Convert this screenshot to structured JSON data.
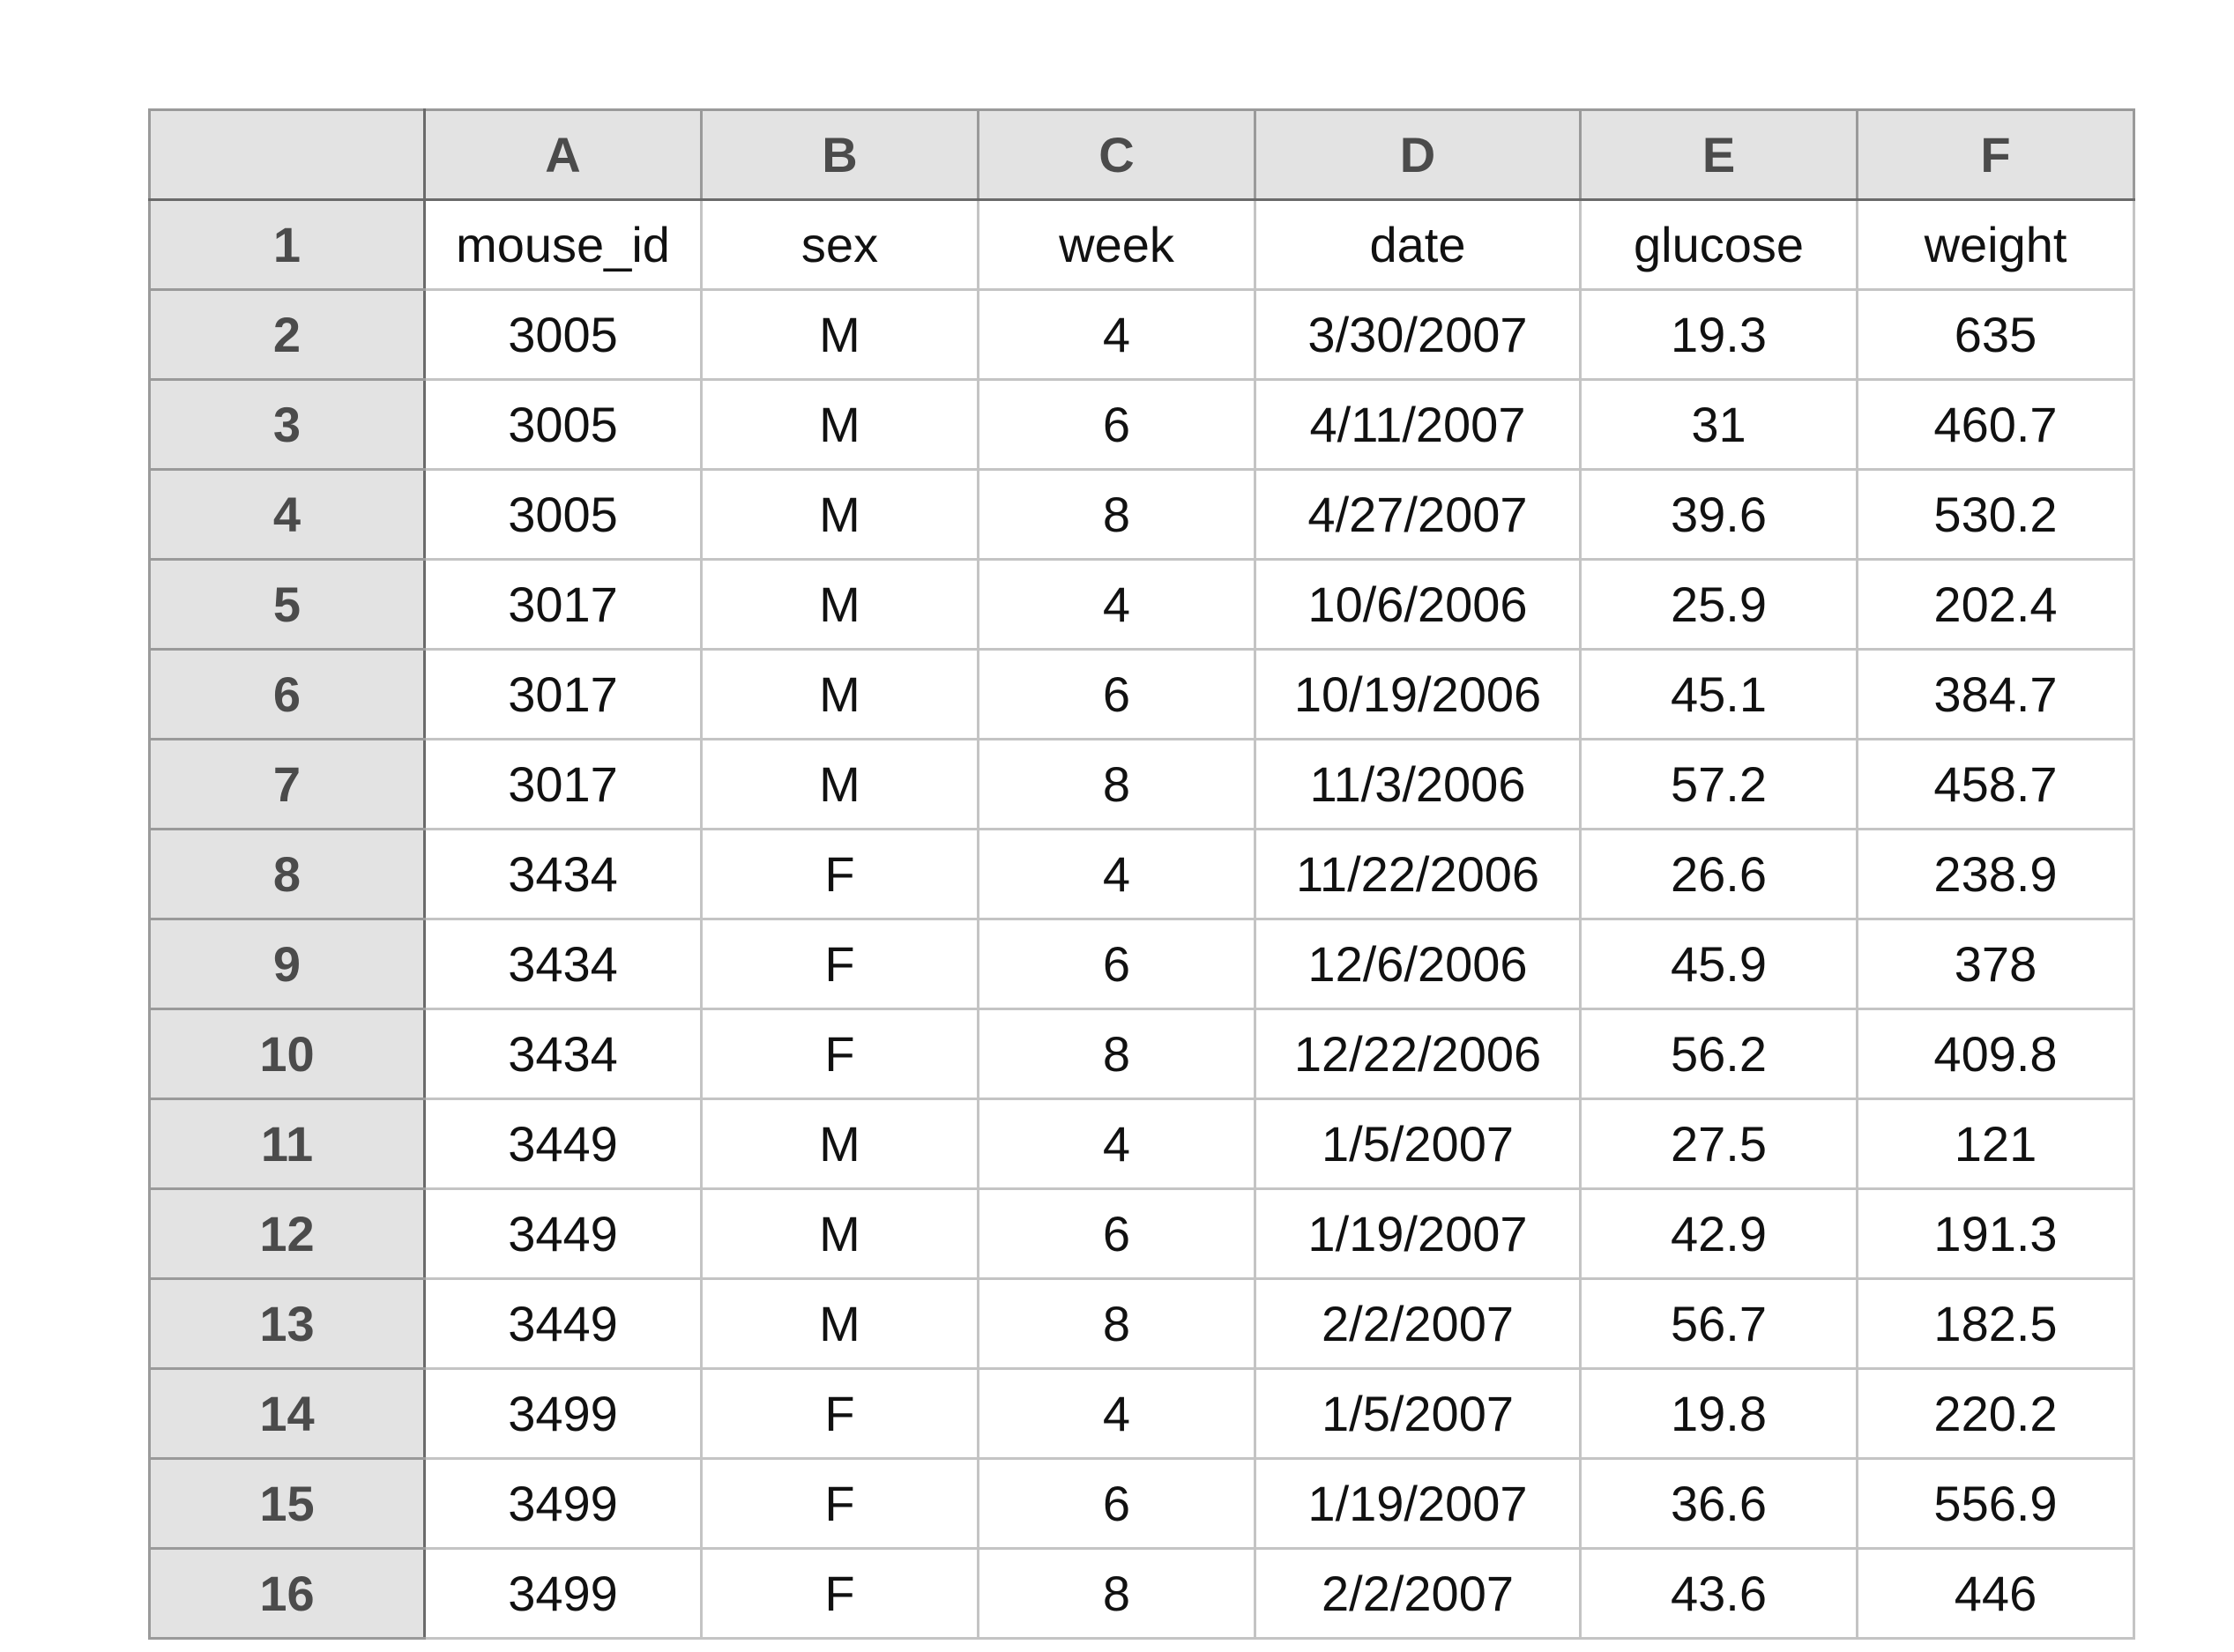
{
  "column_headers": [
    "A",
    "B",
    "C",
    "D",
    "E",
    "F"
  ],
  "rows": [
    {
      "n": "1",
      "cells": [
        "mouse_id",
        "sex",
        "week",
        "date",
        "glucose",
        "weight"
      ]
    },
    {
      "n": "2",
      "cells": [
        "3005",
        "M",
        "4",
        "3/30/2007",
        "19.3",
        "635"
      ]
    },
    {
      "n": "3",
      "cells": [
        "3005",
        "M",
        "6",
        "4/11/2007",
        "31",
        "460.7"
      ]
    },
    {
      "n": "4",
      "cells": [
        "3005",
        "M",
        "8",
        "4/27/2007",
        "39.6",
        "530.2"
      ]
    },
    {
      "n": "5",
      "cells": [
        "3017",
        "M",
        "4",
        "10/6/2006",
        "25.9",
        "202.4"
      ]
    },
    {
      "n": "6",
      "cells": [
        "3017",
        "M",
        "6",
        "10/19/2006",
        "45.1",
        "384.7"
      ]
    },
    {
      "n": "7",
      "cells": [
        "3017",
        "M",
        "8",
        "11/3/2006",
        "57.2",
        "458.7"
      ]
    },
    {
      "n": "8",
      "cells": [
        "3434",
        "F",
        "4",
        "11/22/2006",
        "26.6",
        "238.9"
      ]
    },
    {
      "n": "9",
      "cells": [
        "3434",
        "F",
        "6",
        "12/6/2006",
        "45.9",
        "378"
      ]
    },
    {
      "n": "10",
      "cells": [
        "3434",
        "F",
        "8",
        "12/22/2006",
        "56.2",
        "409.8"
      ]
    },
    {
      "n": "11",
      "cells": [
        "3449",
        "M",
        "4",
        "1/5/2007",
        "27.5",
        "121"
      ]
    },
    {
      "n": "12",
      "cells": [
        "3449",
        "M",
        "6",
        "1/19/2007",
        "42.9",
        "191.3"
      ]
    },
    {
      "n": "13",
      "cells": [
        "3449",
        "M",
        "8",
        "2/2/2007",
        "56.7",
        "182.5"
      ]
    },
    {
      "n": "14",
      "cells": [
        "3499",
        "F",
        "4",
        "1/5/2007",
        "19.8",
        "220.2"
      ]
    },
    {
      "n": "15",
      "cells": [
        "3499",
        "F",
        "6",
        "1/19/2007",
        "36.6",
        "556.9"
      ]
    },
    {
      "n": "16",
      "cells": [
        "3499",
        "F",
        "8",
        "2/2/2007",
        "43.6",
        "446"
      ]
    }
  ]
}
